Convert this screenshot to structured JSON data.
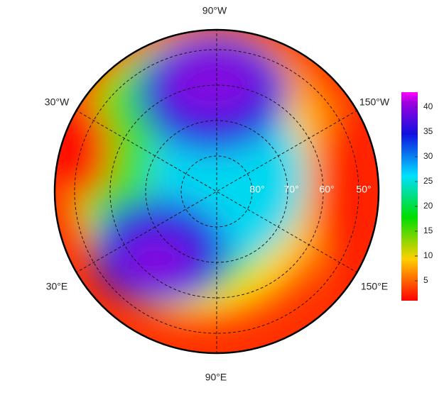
{
  "map": {
    "longitude_labels": [
      "90°W",
      "30°W",
      "150°W",
      "30°E",
      "150°E",
      "90°E"
    ],
    "latitude_labels": [
      "80°",
      "70°",
      "60°",
      "50°"
    ],
    "colorbar": {
      "range": [
        1,
        43
      ],
      "ticks": [
        5,
        10,
        15,
        20,
        25,
        30,
        35,
        40
      ]
    }
  }
}
